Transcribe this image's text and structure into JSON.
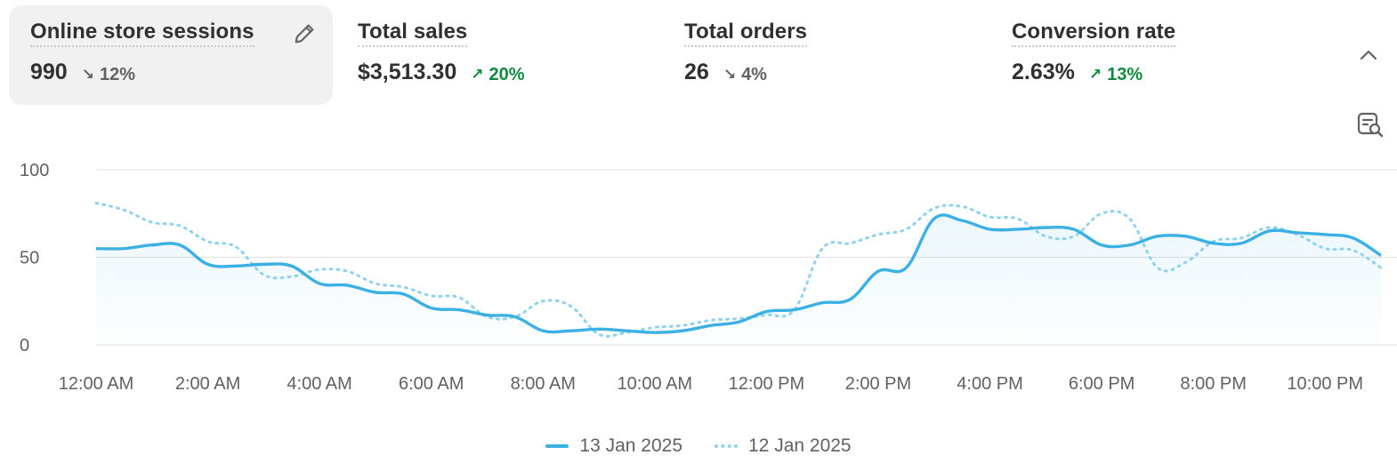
{
  "metrics": [
    {
      "label": "Online store sessions",
      "value": "990",
      "delta": "12%",
      "direction": "down",
      "selected": true
    },
    {
      "label": "Total sales",
      "value": "$3,513.30",
      "delta": "20%",
      "direction": "up",
      "selected": false
    },
    {
      "label": "Total orders",
      "value": "26",
      "delta": "4%",
      "direction": "down",
      "selected": false
    },
    {
      "label": "Conversion rate",
      "value": "2.63%",
      "delta": "13%",
      "direction": "up",
      "selected": false
    }
  ],
  "icons": {
    "edit": "pencil-icon",
    "collapse": "chevron-up-icon",
    "explore": "explore-data-icon"
  },
  "colors": {
    "current": "#3bb0e4",
    "previous": "#8fd3ee",
    "up": "#0f8a3c",
    "down": "#616161"
  },
  "chart_data": {
    "type": "line",
    "title": "",
    "xlabel": "",
    "ylabel": "",
    "ylim": [
      0,
      100
    ],
    "y_ticks": [
      "0",
      "50",
      "100"
    ],
    "x_ticks": [
      "12:00 AM",
      "2:00 AM",
      "4:00 AM",
      "6:00 AM",
      "8:00 AM",
      "10:00 AM",
      "12:00 PM",
      "2:00 PM",
      "4:00 PM",
      "6:00 PM",
      "8:00 PM",
      "10:00 PM"
    ],
    "grid": true,
    "legend_position": "bottom",
    "series": [
      {
        "name": "13 Jan 2025",
        "style": "solid",
        "x": [
          0,
          0.5,
          1,
          1.5,
          2,
          2.5,
          3,
          3.5,
          4,
          4.5,
          5,
          5.5,
          6,
          6.5,
          7,
          7.5,
          8,
          8.5,
          9,
          9.5,
          10,
          10.5,
          11,
          11.5,
          12,
          12.5,
          13,
          13.5,
          14,
          14.5,
          15,
          15.5,
          16,
          16.5,
          17,
          17.5,
          18,
          18.5,
          19,
          19.5,
          20,
          20.5,
          21,
          21.5,
          22,
          22.5,
          23
        ],
        "values": [
          55,
          55,
          57,
          57,
          46,
          45,
          46,
          45,
          35,
          34,
          30,
          29,
          21,
          20,
          17,
          16,
          8,
          8,
          9,
          8,
          7,
          8,
          11,
          13,
          19,
          20,
          24,
          26,
          42,
          44,
          72,
          71,
          66,
          66,
          67,
          66,
          57,
          57,
          62,
          62,
          58,
          58,
          65,
          64,
          63,
          61,
          51
        ]
      },
      {
        "name": "12 Jan 2025",
        "style": "dotted",
        "x": [
          0,
          0.5,
          1,
          1.5,
          2,
          2.5,
          3,
          3.5,
          4,
          4.5,
          5,
          5.5,
          6,
          6.5,
          7,
          7.5,
          8,
          8.5,
          9,
          9.5,
          10,
          10.5,
          11,
          11.5,
          12,
          12.5,
          13,
          13.5,
          14,
          14.5,
          15,
          15.5,
          16,
          16.5,
          17,
          17.5,
          18,
          18.5,
          19,
          19.5,
          20,
          20.5,
          21,
          21.5,
          22,
          22.5,
          23
        ],
        "values": [
          81,
          77,
          70,
          68,
          59,
          56,
          40,
          39,
          43,
          42,
          35,
          33,
          28,
          27,
          16,
          16,
          25,
          22,
          6,
          7,
          10,
          11,
          14,
          15,
          17,
          20,
          55,
          58,
          63,
          66,
          78,
          79,
          73,
          72,
          62,
          62,
          75,
          72,
          44,
          47,
          59,
          61,
          67,
          63,
          55,
          54,
          44
        ]
      }
    ]
  },
  "legend": {
    "current": "13 Jan 2025",
    "previous": "12 Jan 2025"
  }
}
